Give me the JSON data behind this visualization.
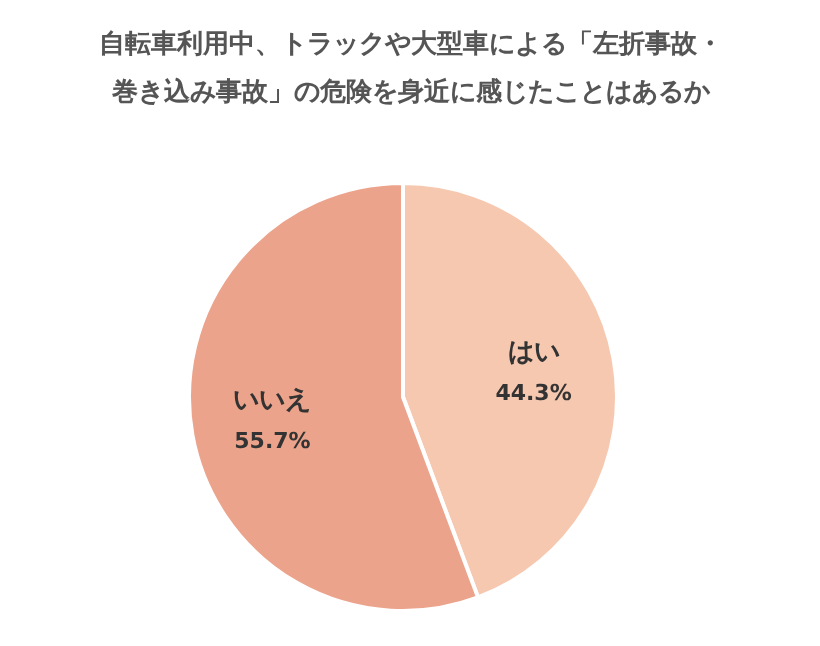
{
  "chart_data": {
    "type": "pie",
    "title": "自転車利用中、トラックや大型車による「左折事故・巻き込み事故」の危険を身近に感じたことはあるか",
    "categories": [
      "はい",
      "いいえ"
    ],
    "values": [
      44.3,
      55.7
    ],
    "colors": [
      "#f6c8b0",
      "#eca38b"
    ],
    "value_labels": [
      "44.3%",
      "55.7%"
    ]
  }
}
